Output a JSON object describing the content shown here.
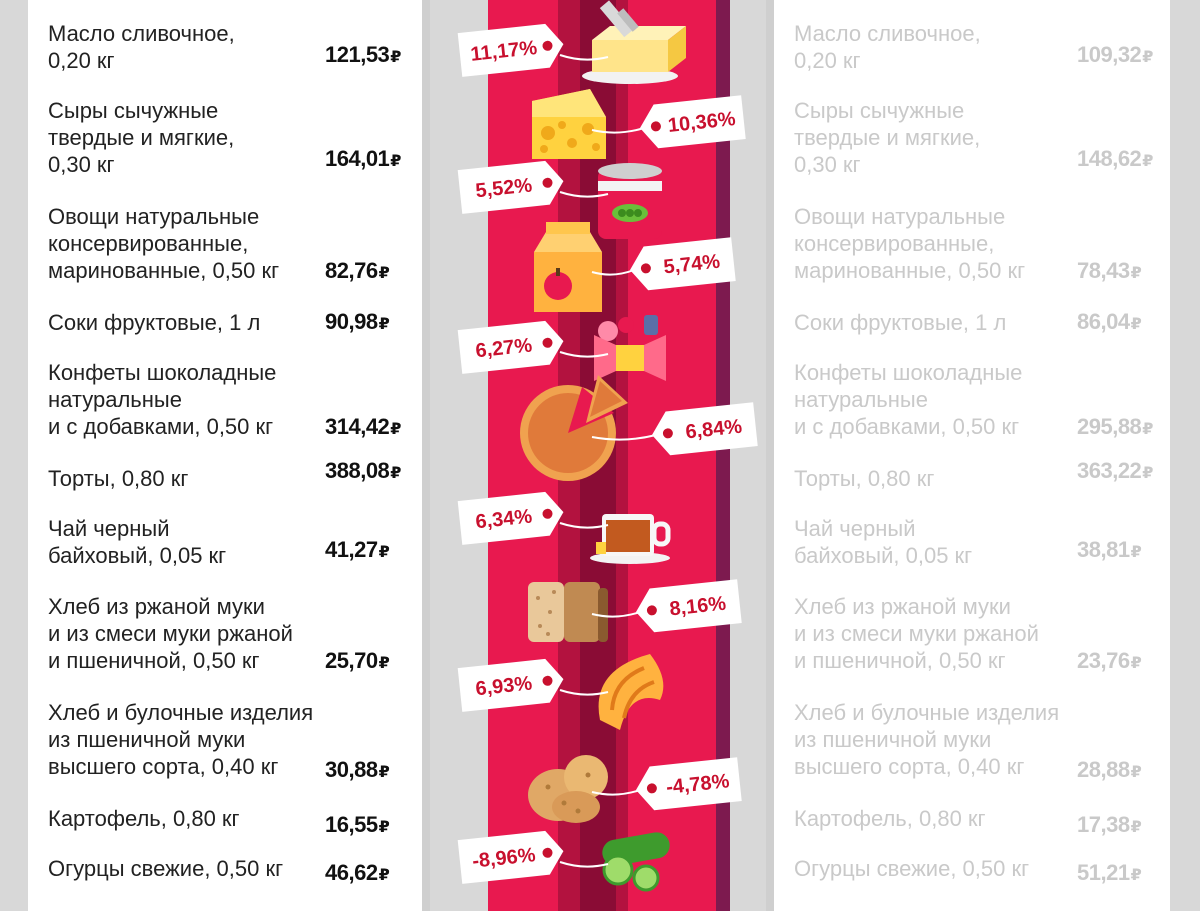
{
  "currency_symbol": "₽",
  "colors": {
    "stripe_outer": "#e8194f",
    "stripe_inner": "#b3123f",
    "stripe_core": "#8a0c35",
    "stripe_edge": "#7d1a4f",
    "tag_text": "#c8102e",
    "tag_fill": "#ffffff"
  },
  "chart_data": {
    "type": "table",
    "columns": [
      "product",
      "price_current",
      "change_percent",
      "price_previous"
    ],
    "rows": [
      {
        "name": "Масло сливочное,\n0,20 кг",
        "price": "121,53",
        "change": "11,17%",
        "change_value": 11.17,
        "prev": "109,32",
        "icon": "butter-icon",
        "tag_side": "left"
      },
      {
        "name": "Сыры сычужные\nтвердые и мягкие,\n0,30 кг",
        "price": "164,01",
        "change": "10,36%",
        "change_value": 10.36,
        "prev": "148,62",
        "icon": "cheese-icon",
        "tag_side": "right"
      },
      {
        "name": "Овощи натуральные\nконсервированные,\nмаринованные, 0,50 кг",
        "price": "82,76",
        "change": "5,52%",
        "change_value": 5.52,
        "prev": "78,43",
        "icon": "canned-peas-icon",
        "tag_side": "left"
      },
      {
        "name": "Соки фруктовые, 1 л",
        "price": "90,98",
        "change": "5,74%",
        "change_value": 5.74,
        "prev": "86,04",
        "icon": "juice-box-icon",
        "tag_side": "right"
      },
      {
        "name": "Конфеты шоколадные\nнатуральные\nи с добавками, 0,50 кг",
        "price": "314,42",
        "change": "6,27%",
        "change_value": 6.27,
        "prev": "295,88",
        "icon": "candy-icon",
        "tag_side": "left"
      },
      {
        "name": "Торты, 0,80 кг",
        "price": "388,08",
        "change": "6,84%",
        "change_value": 6.84,
        "prev": "363,22",
        "icon": "pie-icon",
        "tag_side": "right"
      },
      {
        "name": "Чай черный\nбайховый, 0,05 кг",
        "price": "41,27",
        "change": "6,34%",
        "change_value": 6.34,
        "prev": "38,81",
        "icon": "tea-cup-icon",
        "tag_side": "left"
      },
      {
        "name": "Хлеб из ржаной муки\nи из смеси муки ржаной\nи пшеничной, 0,50 кг",
        "price": "25,70",
        "change": "8,16%",
        "change_value": 8.16,
        "prev": "23,76",
        "icon": "rye-bread-icon",
        "tag_side": "right"
      },
      {
        "name": "Хлеб и булочные изделия\nиз пшеничной муки\nвысшего сорта, 0,40 кг",
        "price": "30,88",
        "change": "6,93%",
        "change_value": 6.93,
        "prev": "28,88",
        "icon": "croissant-icon",
        "tag_side": "left"
      },
      {
        "name": "Картофель, 0,80 кг",
        "price": "16,55",
        "change": "-4,78%",
        "change_value": -4.78,
        "prev": "17,38",
        "icon": "potato-icon",
        "tag_side": "right"
      },
      {
        "name": "Огурцы свежие, 0,50 кг",
        "price": "46,62",
        "change": "-8,96%",
        "change_value": -8.96,
        "prev": "51,21",
        "icon": "cucumber-icon",
        "tag_side": "left"
      }
    ]
  }
}
